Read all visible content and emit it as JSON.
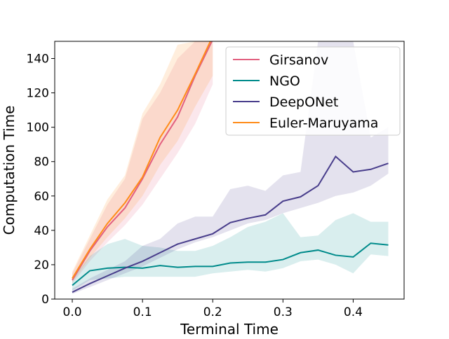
{
  "chart_data": {
    "type": "line",
    "xlabel": "Terminal Time",
    "ylabel": "Computation Time",
    "x": [
      0,
      0.025,
      0.05,
      0.075,
      0.1,
      0.125,
      0.15,
      0.175,
      0.2,
      0.225,
      0.25,
      0.275,
      0.3,
      0.325,
      0.35,
      0.375,
      0.4,
      0.425,
      0.45
    ],
    "xlim": [
      -0.025,
      0.4725
    ],
    "ylim": [
      0,
      150
    ],
    "xticks": [
      {
        "value": 0,
        "label": "0.0"
      },
      0.1,
      0.2,
      0.3,
      0.4
    ],
    "yticks": [
      0,
      20,
      40,
      60,
      80,
      100,
      120,
      140
    ],
    "legend": "upper right",
    "series": [
      {
        "name": "Girsanov",
        "color": "#e2607f",
        "values": [
          11,
          28,
          42,
          53,
          70,
          90,
          106,
          130,
          151,
          null,
          null,
          null,
          null,
          null,
          null,
          null,
          null,
          null,
          null
        ],
        "lower": [
          9,
          22,
          33,
          43,
          55,
          70,
          85,
          102,
          125,
          null,
          null,
          null,
          null,
          null,
          null,
          null,
          null,
          null,
          null
        ],
        "upper": [
          15,
          35,
          55,
          70,
          105,
          120,
          140,
          150,
          150,
          null,
          null,
          null,
          null,
          null,
          null,
          null,
          null,
          null,
          null
        ]
      },
      {
        "name": "NGO",
        "color": "#008b8b",
        "values": [
          8,
          16.5,
          18,
          18.5,
          18,
          19.5,
          18.5,
          19,
          19,
          21,
          21.5,
          21.5,
          23,
          27,
          28.5,
          25.5,
          24.5,
          32.5,
          31.5
        ],
        "lower": [
          5,
          11,
          12,
          13,
          13,
          13,
          13,
          13,
          15,
          16,
          17,
          16,
          18,
          22,
          23,
          20,
          15,
          26,
          25
        ],
        "upper": [
          12,
          25,
          32,
          35,
          31,
          30,
          28,
          28,
          31,
          36,
          42,
          45,
          50,
          36,
          37,
          46,
          50,
          45,
          45
        ]
      },
      {
        "name": "DeepONet",
        "color": "#483d8b",
        "values": [
          4,
          9,
          13.5,
          18,
          22,
          27,
          32,
          35,
          38,
          44.5,
          47,
          49,
          57,
          59.5,
          66,
          83,
          74,
          75.5,
          79
        ],
        "lower": [
          3,
          7,
          11,
          15,
          19,
          24,
          29,
          33,
          36,
          40,
          44,
          46,
          50,
          53,
          56,
          60,
          62,
          66,
          73
        ],
        "upper": [
          6,
          12,
          17,
          22,
          31,
          35,
          44,
          48,
          48,
          64,
          66,
          63,
          72,
          74,
          150,
          150,
          150,
          94,
          100
        ]
      },
      {
        "name": "Euler-Maruyama",
        "color": "#ff8c1a",
        "values": [
          12,
          29,
          44,
          56,
          71,
          94,
          110,
          131,
          153,
          null,
          null,
          null,
          null,
          null,
          null,
          null,
          null,
          null,
          null
        ],
        "lower": [
          10,
          24,
          36,
          47,
          60,
          78,
          92,
          112,
          130,
          null,
          null,
          null,
          null,
          null,
          null,
          null,
          null,
          null,
          null
        ],
        "upper": [
          16,
          37,
          58,
          72,
          108,
          125,
          148,
          150,
          150,
          null,
          null,
          null,
          null,
          null,
          null,
          null,
          null,
          null,
          null
        ]
      }
    ]
  }
}
